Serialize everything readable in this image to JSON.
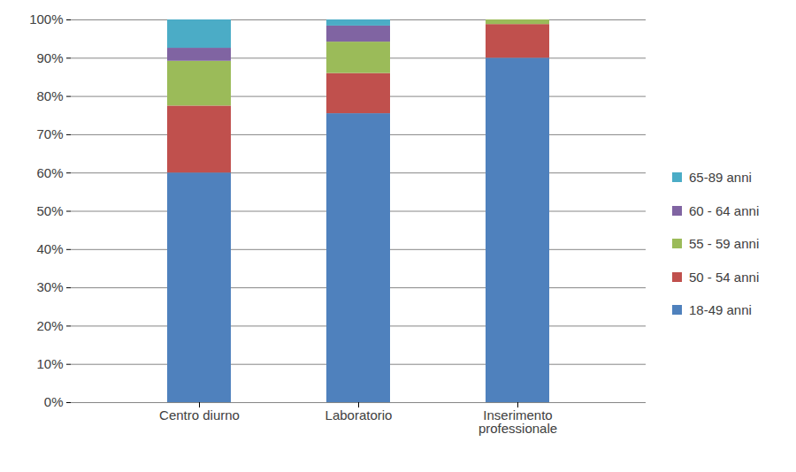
{
  "chart_data": {
    "type": "bar",
    "stacked": true,
    "grid": true,
    "legend": "right",
    "categories": [
      "Centro diurno",
      "Laboratorio",
      "Inserimento professionale"
    ],
    "series": [
      {
        "name": "18-49 anni",
        "color": "#4f81bd",
        "values": [
          60,
          75.5,
          90
        ]
      },
      {
        "name": "50 - 54 anni",
        "color": "#c0504d",
        "values": [
          17.5,
          10.5,
          8.8
        ]
      },
      {
        "name": "55 - 59 anni",
        "color": "#9bbb59",
        "values": [
          11.7,
          8.2,
          1.2
        ]
      },
      {
        "name": "60 - 64 anni",
        "color": "#8064a2",
        "values": [
          3.4,
          4.2,
          0
        ]
      },
      {
        "name": "65-89 anni",
        "color": "#4bacc6",
        "values": [
          7.4,
          1.6,
          0
        ]
      }
    ],
    "ylim": [
      0,
      100
    ],
    "yticks": [
      {
        "value": 0,
        "label": "0%"
      },
      {
        "value": 10,
        "label": "10%"
      },
      {
        "value": 20,
        "label": "20%"
      },
      {
        "value": 30,
        "label": "30%"
      },
      {
        "value": 40,
        "label": "40%"
      },
      {
        "value": 50,
        "label": "50%"
      },
      {
        "value": 60,
        "label": "60%"
      },
      {
        "value": 70,
        "label": "70%"
      },
      {
        "value": 80,
        "label": "80%"
      },
      {
        "value": 90,
        "label": "90%"
      },
      {
        "value": 100,
        "label": "100%"
      }
    ]
  }
}
